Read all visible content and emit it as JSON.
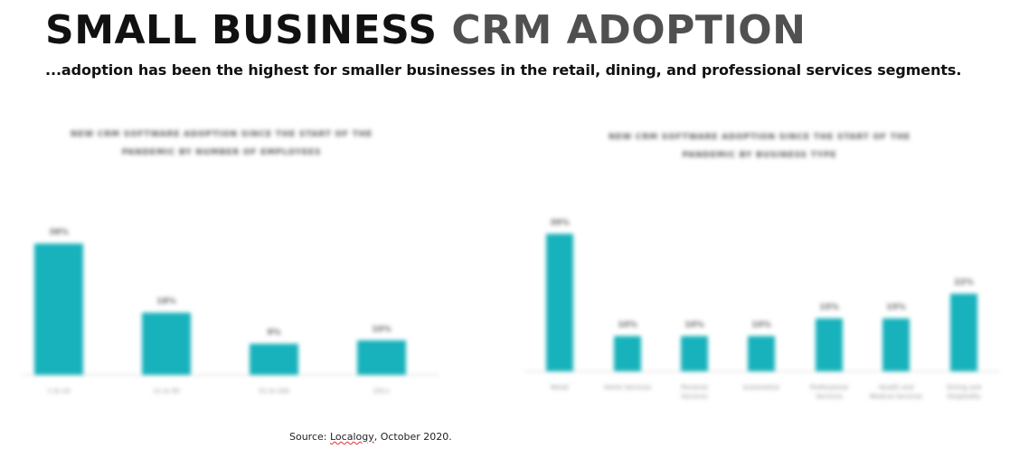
{
  "headline": {
    "part1": "SMALL BUSINESS",
    "part2": "CRM ADOPTION"
  },
  "subtitle": "...adoption has been the highest for smaller businesses in the retail, dining, and professional services segments.",
  "source": {
    "prefix": "Source: ",
    "name": "Localogy",
    "suffix": ", October 2020."
  },
  "colors": {
    "bar": "#17b2bb",
    "headline_dark": "#111111",
    "headline_grey": "#505050",
    "axis": "#e4e4e4",
    "label": "#8a8a8a"
  },
  "chart_data": [
    {
      "type": "bar",
      "title": "NEW CRM SOFTWARE ADOPTION SINCE THE START OF THE PANDEMIC BY NUMBER OF EMPLOYEES",
      "categories": [
        "1 to 10",
        "11 to 50",
        "51 to 100",
        "101+"
      ],
      "values": [
        38,
        18,
        9,
        10
      ],
      "data_labels": [
        "38%",
        "18%",
        "9%",
        "10%"
      ],
      "ylim": [
        0,
        40
      ],
      "grid": false
    },
    {
      "type": "bar",
      "title": "NEW CRM SOFTWARE ADOPTION SINCE THE START OF THE PANDEMIC BY BUSINESS TYPE",
      "categories": [
        "Retail",
        "Home Services",
        "Personal Services",
        "Automotive",
        "Professional Services",
        "Health and Medical Services",
        "Dining and Hospitality"
      ],
      "values": [
        39,
        10,
        10,
        10,
        15,
        15,
        22
      ],
      "data_labels": [
        "39%",
        "10%",
        "10%",
        "10%",
        "15%",
        "15%",
        "22%"
      ],
      "ylim": [
        0,
        40
      ],
      "grid": false
    }
  ]
}
